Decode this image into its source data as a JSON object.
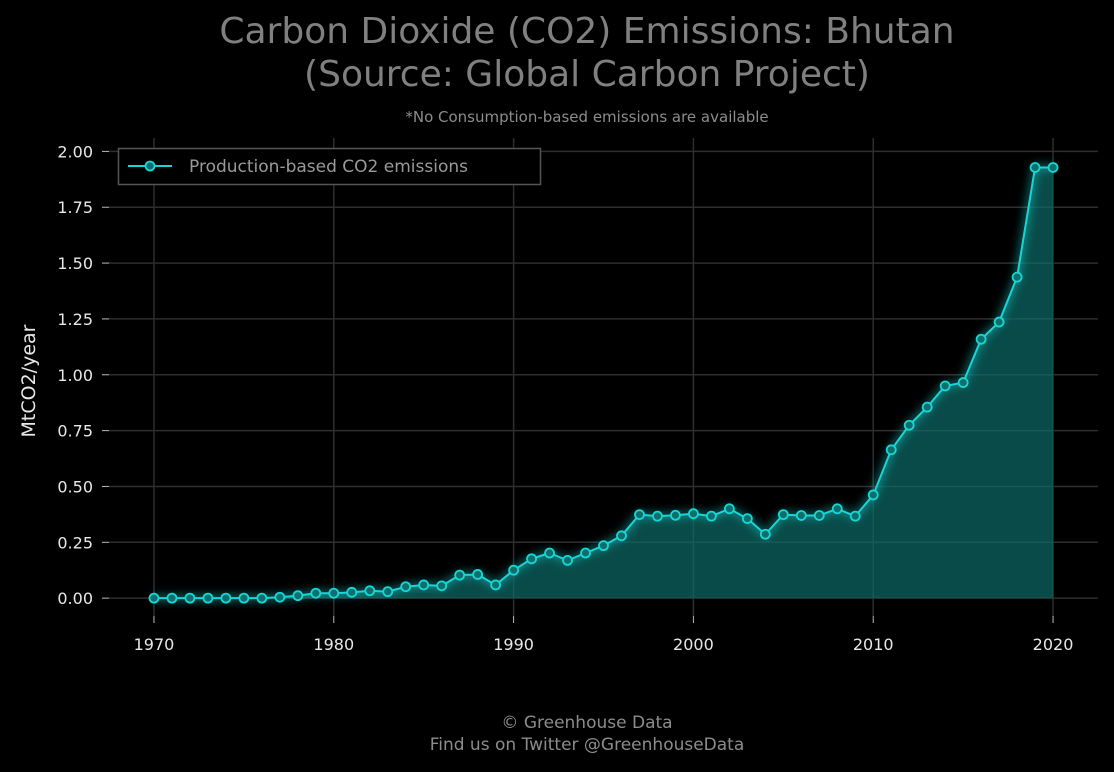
{
  "chart_data": {
    "type": "area",
    "title_line1": "Carbon Dioxide (CO2) Emissions: Bhutan",
    "title_line2": "(Source: Global Carbon Project)",
    "subtitle": "*No Consumption-based emissions are available",
    "ylabel": "MtCO2/year",
    "xlabel": "",
    "xlim": [
      1967.5,
      2022.5
    ],
    "ylim": [
      -0.08,
      2.06
    ],
    "x_ticks": [
      1970,
      1980,
      1990,
      2000,
      2010,
      2020
    ],
    "y_ticks": [
      0.0,
      0.25,
      0.5,
      0.75,
      1.0,
      1.25,
      1.5,
      1.75,
      2.0
    ],
    "y_tick_labels": [
      "0.00",
      "0.25",
      "0.50",
      "0.75",
      "1.00",
      "1.25",
      "1.50",
      "1.75",
      "2.00"
    ],
    "grid": true,
    "legend_position": "top-left",
    "series": [
      {
        "name": "Production-based CO2 emissions",
        "color": "#17d6d6",
        "fill_color": "#0e6e6a",
        "x": [
          1970,
          1971,
          1972,
          1973,
          1974,
          1975,
          1976,
          1977,
          1978,
          1979,
          1980,
          1981,
          1982,
          1983,
          1984,
          1985,
          1986,
          1987,
          1988,
          1989,
          1990,
          1991,
          1992,
          1993,
          1994,
          1995,
          1996,
          1997,
          1998,
          1999,
          2000,
          2001,
          2002,
          2003,
          2004,
          2005,
          2006,
          2007,
          2008,
          2009,
          2010,
          2011,
          2012,
          2013,
          2014,
          2015,
          2016,
          2017,
          2018,
          2019,
          2020
        ],
        "y": [
          0.0,
          0.0,
          0.0,
          0.0,
          0.0,
          0.0,
          0.0,
          0.004,
          0.011,
          0.022,
          0.022,
          0.026,
          0.033,
          0.029,
          0.051,
          0.059,
          0.055,
          0.103,
          0.106,
          0.059,
          0.125,
          0.176,
          0.202,
          0.169,
          0.202,
          0.235,
          0.279,
          0.374,
          0.367,
          0.371,
          0.378,
          0.367,
          0.4,
          0.356,
          0.286,
          0.374,
          0.37,
          0.37,
          0.4,
          0.367,
          0.462,
          0.664,
          0.774,
          0.855,
          0.95,
          0.965,
          1.159,
          1.236,
          1.437,
          1.928,
          1.928
        ]
      }
    ]
  },
  "footer": {
    "line1": "© Greenhouse Data",
    "line2": "Find us on Twitter @GreenhouseData"
  }
}
